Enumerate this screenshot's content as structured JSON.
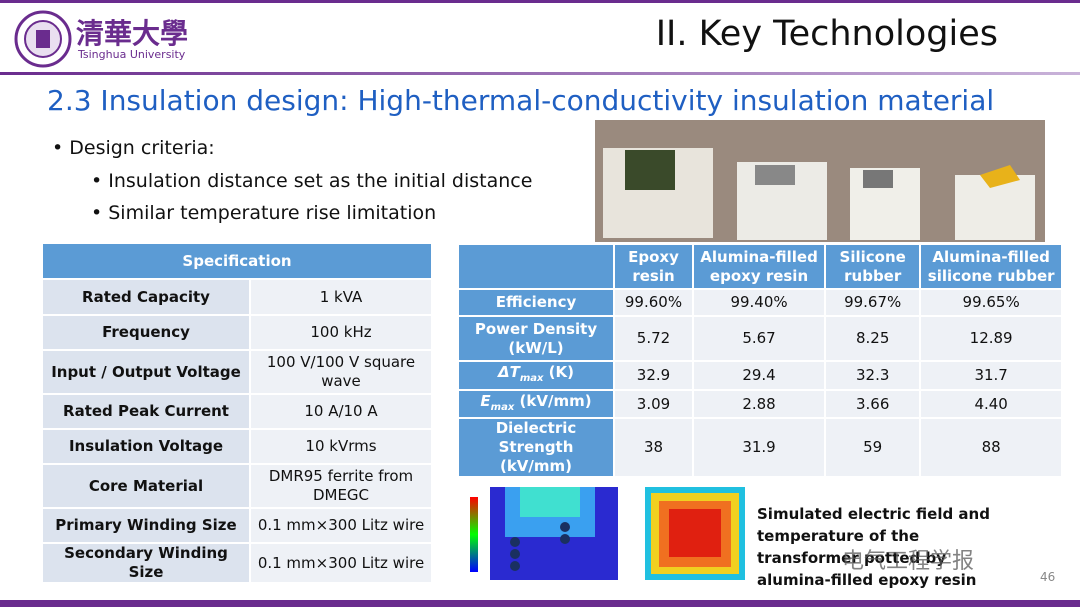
{
  "header": {
    "logo_cn": "清華大學",
    "logo_en": "Tsinghua University",
    "section": "II. Key Technologies"
  },
  "title": "2.3 Insulation design: High-thermal-conductivity insulation material",
  "bullets": {
    "main": "Design criteria:",
    "sub": [
      "Insulation distance set as the initial distance",
      "Similar temperature rise limitation"
    ]
  },
  "spec_table": {
    "header": "Specification",
    "rows": [
      [
        "Rated Capacity",
        "1 kVA"
      ],
      [
        "Frequency",
        "100 kHz"
      ],
      [
        "Input / Output Voltage",
        "100 V/100 V square wave"
      ],
      [
        "Rated Peak Current",
        "10 A/10 A"
      ],
      [
        "Insulation Voltage",
        "10 kVrms"
      ],
      [
        "Core Material",
        "DMR95 ferrite from DMEGC"
      ],
      [
        "Primary Winding Size",
        "0.1 mm×300 Litz wire"
      ],
      [
        "Secondary Winding Size",
        "0.1 mm×300 Litz wire"
      ]
    ]
  },
  "results_table": {
    "columns": [
      "Epoxy resin",
      "Alumina-filled epoxy resin",
      "Silicone rubber",
      "Alumina-filled silicone rubber"
    ],
    "rows": [
      {
        "label": "Efficiency",
        "values": [
          "99.60%",
          "99.40%",
          "99.67%",
          "99.65%"
        ]
      },
      {
        "label": "Power Density (kW/L)",
        "values": [
          "5.72",
          "5.67",
          "8.25",
          "12.89"
        ]
      },
      {
        "label": {
          "symbol": "ΔT",
          "sub": "max",
          "unit": "(K)"
        },
        "values": [
          "32.9",
          "29.4",
          "32.3",
          "31.7"
        ]
      },
      {
        "label": {
          "symbol": "E",
          "sub": "max",
          "unit": "(kV/mm)"
        },
        "values": [
          "3.09",
          "2.88",
          "3.66",
          "4.40"
        ]
      },
      {
        "label": "Dielectric Strength (kV/mm)",
        "values": [
          "38",
          "31.9",
          "59",
          "88"
        ]
      }
    ]
  },
  "caption": "Simulated electric field and temperature of the transformer potted by alumina-filled epoxy resin",
  "watermark": "电气工程学报",
  "page_number": "46"
}
